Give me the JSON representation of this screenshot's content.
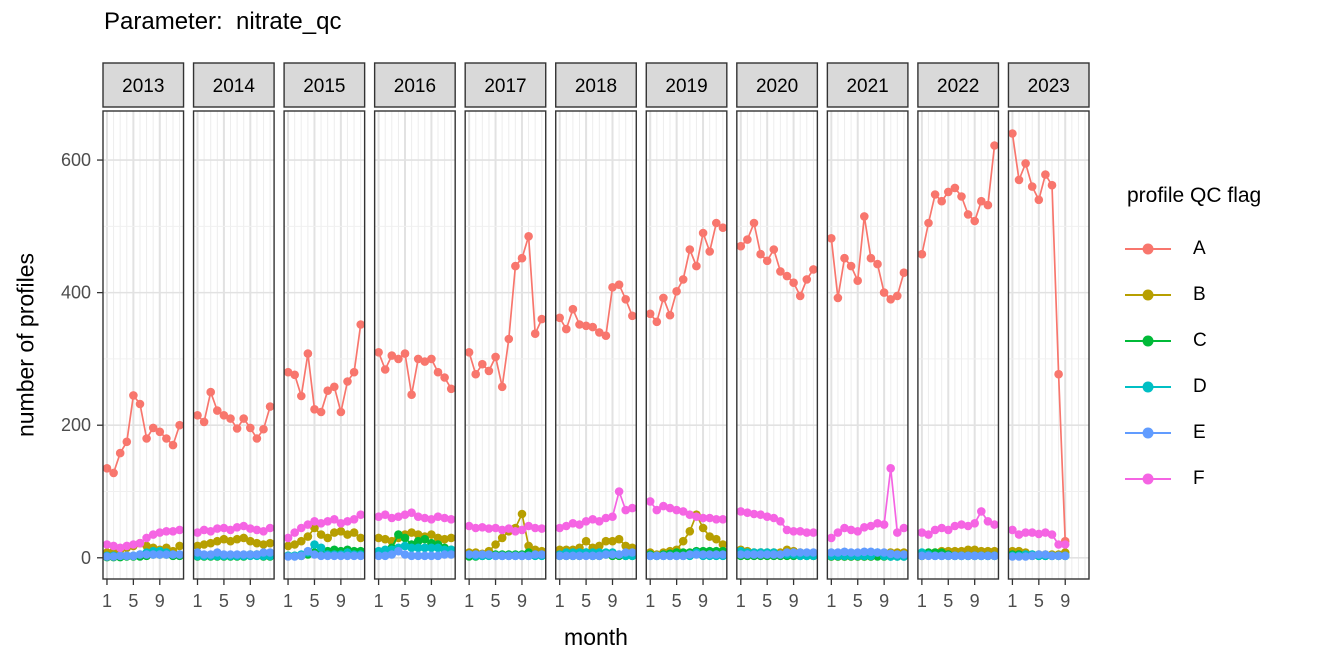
{
  "title": "Parameter:  nitrate_qc",
  "axes": {
    "x_label": "month",
    "y_label": "number of profiles",
    "x_ticks": [
      1,
      5,
      9
    ],
    "y_ticks": [
      0,
      200,
      400,
      600
    ]
  },
  "legend": {
    "title": "profile QC flag",
    "entries": [
      {
        "label": "A",
        "color": "#F8766D"
      },
      {
        "label": "B",
        "color": "#B79F00"
      },
      {
        "label": "C",
        "color": "#00BA38"
      },
      {
        "label": "D",
        "color": "#00BFC4"
      },
      {
        "label": "E",
        "color": "#619CFF"
      },
      {
        "label": "F",
        "color": "#F564E3"
      }
    ]
  },
  "chart_data": {
    "type": "line",
    "title": "Parameter:  nitrate_qc",
    "xlabel": "month",
    "ylabel": "number of profiles",
    "facet_variable": "year",
    "facets": [
      "2013",
      "2014",
      "2015",
      "2016",
      "2017",
      "2018",
      "2019",
      "2020",
      "2021",
      "2022",
      "2023"
    ],
    "x_ticks": [
      1,
      5,
      9
    ],
    "x_range": [
      0.4,
      12.6
    ],
    "ylim": [
      -32,
      674
    ],
    "y_major_gridlines": [
      0,
      200,
      400,
      600
    ],
    "y_minor_gridlines": [
      100,
      300,
      500
    ],
    "grid": "on",
    "legend_position": "right",
    "legend_title": "profile QC flag",
    "series": [
      {
        "name": "A",
        "color": "#F8766D",
        "data": {
          "2013": [
            135,
            128,
            158,
            175,
            245,
            232,
            180,
            196,
            190,
            180,
            170,
            200
          ],
          "2014": [
            215,
            205,
            250,
            222,
            215,
            210,
            195,
            210,
            196,
            180,
            194,
            228
          ],
          "2015": [
            280,
            276,
            244,
            308,
            224,
            220,
            252,
            258,
            220,
            266,
            280,
            352
          ],
          "2016": [
            310,
            284,
            305,
            300,
            308,
            246,
            300,
            296,
            300,
            280,
            272,
            255
          ],
          "2017": [
            310,
            277,
            292,
            282,
            303,
            258,
            330,
            440,
            452,
            485,
            338,
            360
          ],
          "2018": [
            362,
            345,
            375,
            352,
            350,
            348,
            340,
            335,
            408,
            412,
            390,
            365
          ],
          "2019": [
            368,
            356,
            392,
            366,
            402,
            420,
            465,
            440,
            490,
            462,
            505,
            498
          ],
          "2020": [
            470,
            480,
            505,
            458,
            448,
            465,
            432,
            425,
            415,
            395,
            420,
            435
          ],
          "2021": [
            482,
            392,
            452,
            440,
            418,
            515,
            452,
            443,
            400,
            390,
            395,
            430
          ],
          "2022": [
            458,
            505,
            548,
            538,
            552,
            558,
            545,
            518,
            508,
            538,
            532,
            622
          ],
          "2023": [
            640,
            570,
            595,
            560,
            540,
            578,
            562,
            277,
            25
          ]
        }
      },
      {
        "name": "B",
        "color": "#B79F00",
        "data": {
          "2013": [
            8,
            10,
            12,
            15,
            18,
            22,
            18,
            15,
            12,
            15,
            10,
            18
          ],
          "2014": [
            18,
            20,
            22,
            25,
            28,
            25,
            28,
            30,
            25,
            22,
            20,
            22
          ],
          "2015": [
            18,
            20,
            25,
            32,
            45,
            35,
            30,
            38,
            40,
            35,
            38,
            30
          ],
          "2016": [
            30,
            28,
            25,
            30,
            35,
            38,
            35,
            32,
            35,
            30,
            28,
            30
          ],
          "2017": [
            8,
            8,
            6,
            10,
            20,
            30,
            40,
            45,
            66,
            18,
            12,
            10
          ],
          "2018": [
            12,
            12,
            12,
            15,
            25,
            15,
            18,
            25,
            25,
            28,
            18,
            15
          ],
          "2019": [
            8,
            5,
            8,
            10,
            12,
            25,
            40,
            65,
            45,
            32,
            28,
            20
          ],
          "2020": [
            12,
            10,
            8,
            8,
            8,
            8,
            8,
            12,
            10,
            8,
            5,
            3
          ],
          "2021": [
            2,
            2,
            2,
            2,
            2,
            2,
            2,
            3,
            3,
            8,
            8,
            8
          ],
          "2022": [
            3,
            5,
            8,
            10,
            10,
            10,
            10,
            12,
            12,
            10,
            10,
            10
          ],
          "2023": [
            10,
            10,
            8,
            5,
            5,
            5,
            5,
            5,
            8
          ]
        }
      },
      {
        "name": "C",
        "color": "#00BA38",
        "data": {
          "2013": [
            1,
            1,
            1,
            2,
            2,
            2,
            3,
            5,
            5,
            5,
            3,
            3
          ],
          "2014": [
            2,
            2,
            2,
            2,
            2,
            2,
            2,
            2,
            5,
            5,
            2,
            2
          ],
          "2015": [
            3,
            3,
            3,
            5,
            8,
            8,
            10,
            12,
            10,
            12,
            10,
            10
          ],
          "2016": [
            8,
            10,
            15,
            35,
            30,
            20,
            25,
            28,
            22,
            20,
            15,
            12
          ],
          "2017": [
            2,
            2,
            3,
            4,
            5,
            5,
            5,
            5,
            5,
            8,
            5,
            4
          ],
          "2018": [
            3,
            3,
            3,
            3,
            8,
            3,
            3,
            5,
            3,
            3,
            3,
            3
          ],
          "2019": [
            5,
            3,
            5,
            6,
            8,
            8,
            8,
            10,
            10,
            10,
            10,
            10
          ],
          "2020": [
            3,
            3,
            3,
            3,
            3,
            3,
            3,
            3,
            3,
            3,
            3,
            3
          ],
          "2021": [
            2,
            2,
            2,
            2,
            2,
            2,
            2,
            2,
            2,
            2,
            2,
            2
          ],
          "2022": [
            3,
            8,
            8,
            8,
            5,
            3,
            3,
            3,
            3,
            3,
            3,
            3
          ],
          "2023": [
            5,
            5,
            3,
            3,
            3,
            3,
            3,
            3,
            3
          ]
        }
      },
      {
        "name": "D",
        "color": "#00BFC4",
        "data": {
          "2013": [
            3,
            3,
            3,
            3,
            3,
            5,
            8,
            10,
            10,
            8,
            5,
            5
          ],
          "2014": [
            3,
            3,
            3,
            3,
            3,
            3,
            3,
            3,
            3,
            3,
            3,
            3
          ],
          "2015": [
            3,
            3,
            5,
            8,
            20,
            15,
            5,
            5,
            5,
            8,
            5,
            5
          ],
          "2016": [
            10,
            12,
            12,
            15,
            18,
            15,
            15,
            15,
            15,
            15,
            12,
            12
          ],
          "2017": [
            5,
            3,
            3,
            3,
            3,
            3,
            3,
            3,
            3,
            3,
            3,
            3
          ],
          "2018": [
            5,
            8,
            8,
            8,
            8,
            8,
            8,
            8,
            8,
            5,
            3,
            3
          ],
          "2019": [
            3,
            3,
            3,
            3,
            3,
            3,
            3,
            8,
            3,
            3,
            3,
            3
          ],
          "2020": [
            10,
            8,
            8,
            8,
            8,
            8,
            5,
            5,
            5,
            3,
            3,
            3
          ],
          "2021": [
            3,
            3,
            3,
            3,
            3,
            3,
            3,
            8,
            3,
            2,
            2,
            2
          ],
          "2022": [
            8,
            5,
            3,
            3,
            3,
            3,
            3,
            3,
            3,
            3,
            3,
            3
          ],
          "2023": [
            3,
            3,
            5,
            5,
            3,
            3,
            3,
            3,
            3
          ]
        }
      },
      {
        "name": "E",
        "color": "#619CFF",
        "data": {
          "2013": [
            2,
            2,
            3,
            3,
            3,
            5,
            5,
            5,
            5,
            5,
            5,
            5
          ],
          "2014": [
            8,
            5,
            5,
            8,
            5,
            5,
            5,
            5,
            5,
            5,
            8,
            8
          ],
          "2015": [
            2,
            2,
            3,
            10,
            5,
            3,
            3,
            3,
            3,
            3,
            3,
            3
          ],
          "2016": [
            3,
            3,
            5,
            10,
            5,
            3,
            3,
            3,
            3,
            3,
            5,
            5
          ],
          "2017": [
            5,
            5,
            5,
            5,
            3,
            3,
            3,
            3,
            3,
            3,
            5,
            5
          ],
          "2018": [
            3,
            3,
            3,
            3,
            3,
            3,
            3,
            5,
            5,
            5,
            8,
            8
          ],
          "2019": [
            3,
            3,
            3,
            3,
            3,
            3,
            5,
            5,
            5,
            5,
            5,
            5
          ],
          "2020": [
            5,
            5,
            5,
            5,
            5,
            5,
            5,
            8,
            8,
            8,
            8,
            8
          ],
          "2021": [
            8,
            8,
            9,
            8,
            8,
            9,
            9,
            8,
            8,
            6,
            5,
            5
          ],
          "2022": [
            3,
            3,
            3,
            3,
            3,
            3,
            3,
            3,
            3,
            3,
            3,
            3
          ],
          "2023": [
            2,
            2,
            2,
            3,
            5,
            5,
            3,
            3,
            3
          ]
        }
      },
      {
        "name": "F",
        "color": "#F564E3",
        "data": {
          "2013": [
            20,
            18,
            15,
            18,
            20,
            22,
            30,
            35,
            38,
            40,
            40,
            42
          ],
          "2014": [
            38,
            42,
            40,
            44,
            45,
            42,
            46,
            48,
            44,
            42,
            40,
            45
          ],
          "2015": [
            30,
            38,
            45,
            50,
            55,
            52,
            55,
            58,
            52,
            55,
            58,
            65
          ],
          "2016": [
            62,
            65,
            60,
            62,
            65,
            68,
            62,
            60,
            58,
            62,
            60,
            58
          ],
          "2017": [
            48,
            45,
            46,
            44,
            45,
            42,
            44,
            40,
            42,
            48,
            45,
            44
          ],
          "2018": [
            45,
            48,
            52,
            50,
            55,
            58,
            55,
            60,
            62,
            100,
            72,
            75
          ],
          "2019": [
            85,
            72,
            78,
            75,
            72,
            70,
            65,
            62,
            60,
            60,
            58,
            58
          ],
          "2020": [
            70,
            68,
            66,
            65,
            62,
            60,
            55,
            42,
            40,
            40,
            38,
            38
          ],
          "2021": [
            30,
            38,
            45,
            42,
            40,
            46,
            48,
            52,
            50,
            135,
            38,
            45
          ],
          "2022": [
            38,
            35,
            42,
            45,
            42,
            48,
            50,
            48,
            52,
            70,
            55,
            50
          ],
          "2023": [
            42,
            35,
            38,
            38,
            36,
            38,
            35,
            20,
            20
          ]
        }
      }
    ]
  }
}
